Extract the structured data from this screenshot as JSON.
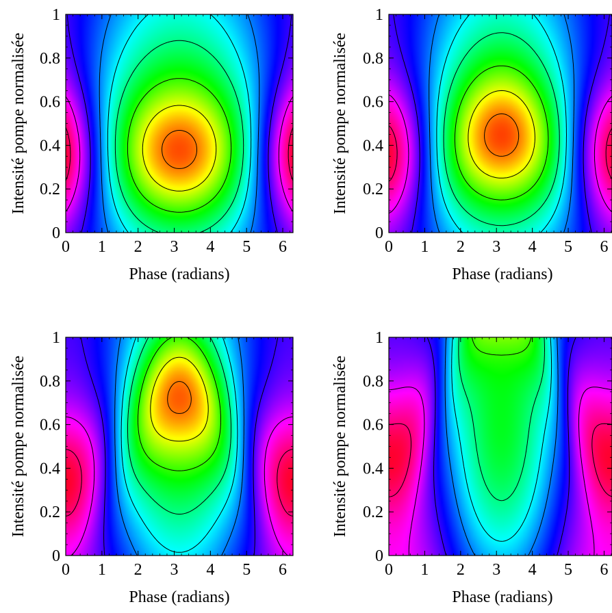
{
  "figure": {
    "colormap": [
      "#ff0000",
      "#ff00ff",
      "#0000ff",
      "#00ffff",
      "#00ff00",
      "#ffff00",
      "#ff0000"
    ]
  },
  "chart_data": [
    {
      "type": "contour",
      "panel": "top-left",
      "xlabel": "Phase (radians)",
      "ylabel": "Intensité pompe normalisée",
      "xlim": [
        0,
        6.283
      ],
      "ylim": [
        0,
        1
      ],
      "xticks": [
        0,
        1,
        2,
        3,
        4,
        5,
        6
      ],
      "yticks": [
        0,
        0.2,
        0.4,
        0.6,
        0.8,
        1
      ],
      "ytick_labels": [
        "0",
        "0.2",
        "0.4",
        "0.6",
        "0.8",
        "1"
      ],
      "model": {
        "yc": 0.36,
        "sharpness": 5,
        "shift": 0.0
      },
      "levels": [
        0.08,
        0.18,
        0.3,
        0.42,
        0.5,
        0.58,
        0.7,
        0.82,
        0.92
      ],
      "grid": false
    },
    {
      "type": "contour",
      "panel": "top-right",
      "xlabel": "Phase (radians)",
      "ylabel": "Intensité pompe normalisée",
      "xlim": [
        0,
        6.283
      ],
      "ylim": [
        0,
        1
      ],
      "xticks": [
        0,
        1,
        2,
        3,
        4,
        5,
        6
      ],
      "yticks": [
        0,
        0.2,
        0.4,
        0.6,
        0.8,
        1
      ],
      "ytick_labels": [
        "0",
        "0.2",
        "0.4",
        "0.6",
        "0.8",
        "1"
      ],
      "model": {
        "yc": 0.4,
        "sharpness": 4,
        "shift": 0.08
      },
      "levels": [
        0.08,
        0.18,
        0.3,
        0.42,
        0.5,
        0.58,
        0.7,
        0.82,
        0.92
      ],
      "grid": false
    },
    {
      "type": "contour",
      "panel": "bottom-left",
      "xlabel": "Phase (radians)",
      "ylabel": "Intensité pompe normalisée",
      "xlim": [
        0,
        6.283
      ],
      "ylim": [
        0,
        1
      ],
      "xticks": [
        0,
        1,
        2,
        3,
        4,
        5,
        6
      ],
      "yticks": [
        0,
        0.2,
        0.4,
        0.6,
        0.8,
        1
      ],
      "ytick_labels": [
        "0",
        "0.2",
        "0.4",
        "0.6",
        "0.8",
        "1"
      ],
      "model": {
        "yc": 0.55,
        "sharpness": 3,
        "shift": 0.45
      },
      "levels": [
        0.08,
        0.18,
        0.3,
        0.42,
        0.5,
        0.58,
        0.7,
        0.82,
        0.92
      ],
      "grid": false
    },
    {
      "type": "contour",
      "panel": "bottom-right",
      "xlabel": "Phase (radians)",
      "ylabel": "Intensité pompe normalisée",
      "xlim": [
        0,
        6.283
      ],
      "ylim": [
        0,
        1
      ],
      "xticks": [
        0,
        1,
        2,
        3,
        4,
        5,
        6
      ],
      "yticks": [
        0,
        0.2,
        0.4,
        0.6,
        0.8,
        1
      ],
      "ytick_labels": [
        "0",
        "0.2",
        "0.4",
        "0.6",
        "0.8",
        "1"
      ],
      "model": {
        "yc": 0.85,
        "sharpness": 2.2,
        "shift": 0.85
      },
      "levels": [
        0.08,
        0.18,
        0.3,
        0.42,
        0.5,
        0.58,
        0.7,
        0.82,
        0.92
      ],
      "grid": false
    }
  ]
}
